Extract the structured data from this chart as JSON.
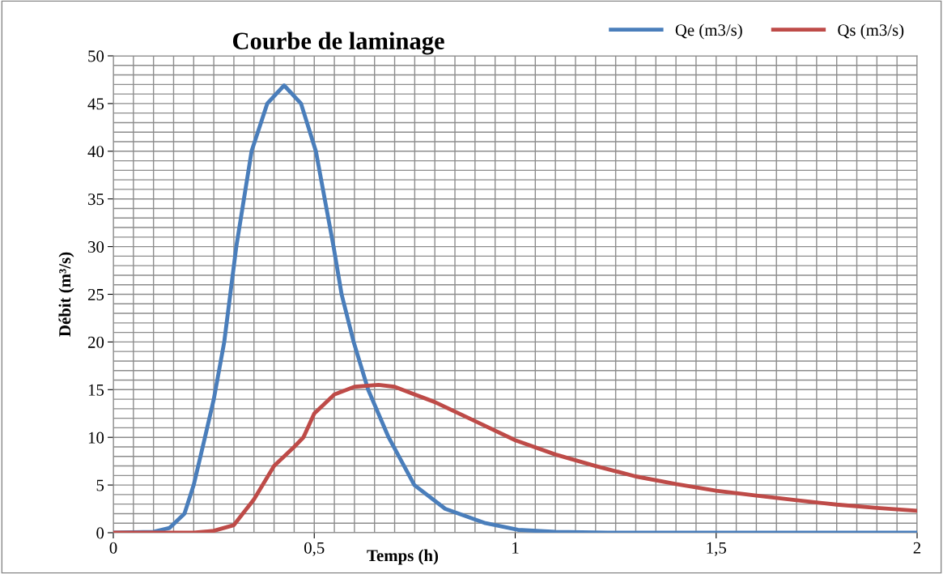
{
  "chart_data": {
    "type": "line",
    "title": "Courbe de laminage",
    "xlabel": "Temps (h)",
    "ylabel": "Débit (m³/s)",
    "series": [
      {
        "name": "Qe (m3/s)",
        "color": "#4a7ebb",
        "x": [
          0,
          0.1,
          0.14,
          0.177,
          0.2,
          0.228,
          0.25,
          0.276,
          0.306,
          0.344,
          0.383,
          0.425,
          0.467,
          0.504,
          0.548,
          0.568,
          0.598,
          0.634,
          0.685,
          0.749,
          0.826,
          0.926,
          1.007,
          1.1,
          1.23,
          1.5,
          2
        ],
        "values": [
          0,
          0.1,
          0.5,
          2,
          5,
          10,
          14,
          20,
          30,
          40,
          45,
          46.9,
          45,
          40,
          30,
          25,
          20,
          15,
          10,
          5,
          2.5,
          1,
          0.3,
          0.1,
          0,
          0,
          0
        ]
      },
      {
        "name": "Qs (m3/s)",
        "color": "#be4b48",
        "x": [
          0,
          0.2,
          0.25,
          0.3,
          0.35,
          0.4,
          0.45,
          0.473,
          0.5,
          0.55,
          0.6,
          0.66,
          0.7,
          0.8,
          0.9,
          1.0,
          1.1,
          1.2,
          1.3,
          1.4,
          1.5,
          1.6,
          1.7,
          1.8,
          1.9,
          2
        ],
        "values": [
          0,
          0,
          0.2,
          0.8,
          3.5,
          7,
          9,
          10,
          12.5,
          14.5,
          15.3,
          15.5,
          15.3,
          13.7,
          11.7,
          9.7,
          8.2,
          7,
          5.9,
          5.1,
          4.4,
          3.9,
          3.4,
          2.95,
          2.6,
          2.3
        ]
      }
    ],
    "xlim": [
      0,
      2
    ],
    "ylim": [
      0,
      50
    ],
    "xticks": [
      0,
      {
        "value": 0.05,
        "label": null
      },
      {
        "value": 0.1,
        "label": null
      },
      {
        "value": 0.15,
        "label": null
      },
      {
        "value": 0.2,
        "label": null
      },
      {
        "value": 0.25,
        "label": null
      },
      {
        "value": 0.3,
        "label": null
      },
      {
        "value": 0.35,
        "label": null
      },
      {
        "value": 0.4,
        "label": null
      },
      {
        "value": 0.45,
        "label": null
      },
      {
        "value": 0.5,
        "label": "0,5"
      },
      {
        "value": 0.55,
        "label": null
      },
      {
        "value": 0.6,
        "label": null
      },
      {
        "value": 0.65,
        "label": null
      },
      {
        "value": 0.7,
        "label": null
      },
      {
        "value": 0.75,
        "label": null
      },
      {
        "value": 0.8,
        "label": null
      },
      {
        "value": 0.85,
        "label": null
      },
      {
        "value": 0.9,
        "label": null
      },
      {
        "value": 0.95,
        "label": null
      },
      1,
      {
        "value": 1.05,
        "label": null
      },
      {
        "value": 1.1,
        "label": null
      },
      {
        "value": 1.15,
        "label": null
      },
      {
        "value": 1.2,
        "label": null
      },
      {
        "value": 1.25,
        "label": null
      },
      {
        "value": 1.3,
        "label": null
      },
      {
        "value": 1.35,
        "label": null
      },
      {
        "value": 1.4,
        "label": null
      },
      {
        "value": 1.45,
        "label": null
      },
      {
        "value": 1.5,
        "label": "1,5"
      },
      {
        "value": 1.55,
        "label": null
      },
      {
        "value": 1.6,
        "label": null
      },
      {
        "value": 1.65,
        "label": null
      },
      {
        "value": 1.7,
        "label": null
      },
      {
        "value": 1.75,
        "label": null
      },
      {
        "value": 1.8,
        "label": null
      },
      {
        "value": 1.85,
        "label": null
      },
      {
        "value": 1.9,
        "label": null
      },
      {
        "value": 1.95,
        "label": null
      },
      2
    ],
    "yticks": [
      0,
      {
        "value": 1,
        "label": null
      },
      {
        "value": 2,
        "label": null
      },
      {
        "value": 3,
        "label": null
      },
      {
        "value": 4,
        "label": null
      },
      5,
      {
        "value": 6,
        "label": null
      },
      {
        "value": 7,
        "label": null
      },
      {
        "value": 8,
        "label": null
      },
      {
        "value": 9,
        "label": null
      },
      10,
      {
        "value": 11,
        "label": null
      },
      {
        "value": 12,
        "label": null
      },
      {
        "value": 13,
        "label": null
      },
      {
        "value": 14,
        "label": null
      },
      15,
      {
        "value": 16,
        "label": null
      },
      {
        "value": 17,
        "label": null
      },
      {
        "value": 18,
        "label": null
      },
      {
        "value": 19,
        "label": null
      },
      20,
      {
        "value": 21,
        "label": null
      },
      {
        "value": 22,
        "label": null
      },
      {
        "value": 23,
        "label": null
      },
      {
        "value": 24,
        "label": null
      },
      25,
      {
        "value": 26,
        "label": null
      },
      {
        "value": 27,
        "label": null
      },
      {
        "value": 28,
        "label": null
      },
      {
        "value": 29,
        "label": null
      },
      30,
      {
        "value": 31,
        "label": null
      },
      {
        "value": 32,
        "label": null
      },
      {
        "value": 33,
        "label": null
      },
      {
        "value": 34,
        "label": null
      },
      35,
      {
        "value": 36,
        "label": null
      },
      {
        "value": 37,
        "label": null
      },
      {
        "value": 38,
        "label": null
      },
      {
        "value": 39,
        "label": null
      },
      40,
      {
        "value": 41,
        "label": null
      },
      {
        "value": 42,
        "label": null
      },
      {
        "value": 43,
        "label": null
      },
      {
        "value": 44,
        "label": null
      },
      45,
      {
        "value": 46,
        "label": null
      },
      {
        "value": 47,
        "label": null
      },
      {
        "value": 48,
        "label": null
      },
      {
        "value": 49,
        "label": null
      },
      50
    ],
    "grid": true,
    "legend": "top right",
    "marker": "none",
    "line_style": "solid"
  }
}
